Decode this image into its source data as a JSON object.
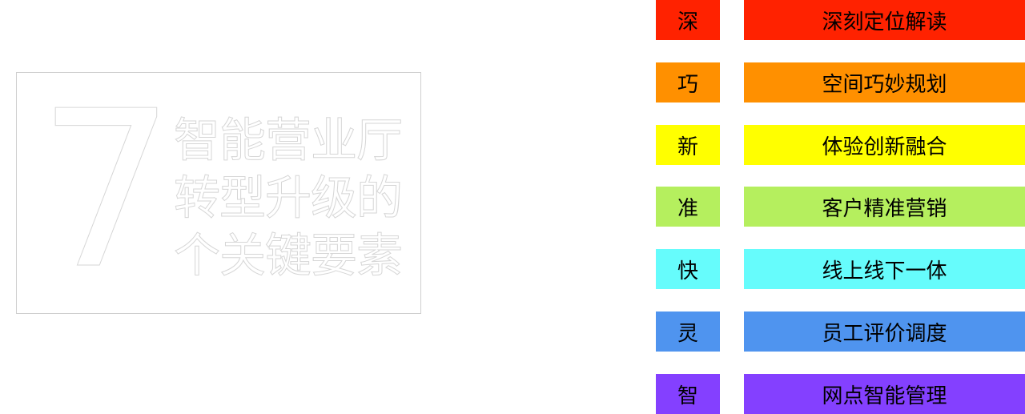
{
  "title": {
    "number": "7",
    "lines": [
      "智能营业厅",
      "转型升级的",
      "个关键要素"
    ]
  },
  "elements": [
    {
      "key": "深",
      "label": "深刻定位解读",
      "color": "#ff2200"
    },
    {
      "key": "巧",
      "label": "空间巧妙规划",
      "color": "#ff9000"
    },
    {
      "key": "新",
      "label": "体验创新融合",
      "color": "#ffff00"
    },
    {
      "key": "准",
      "label": "客户精准营销",
      "color": "#b5ef5e"
    },
    {
      "key": "快",
      "label": "线上线下一体",
      "color": "#66fcfc"
    },
    {
      "key": "灵",
      "label": "员工评价调度",
      "color": "#4f94ef"
    },
    {
      "key": "智",
      "label": "网点智能管理",
      "color": "#8440ff"
    }
  ]
}
